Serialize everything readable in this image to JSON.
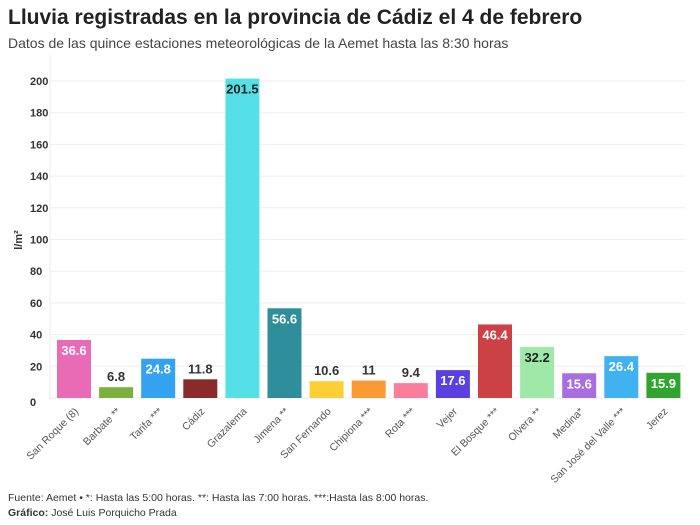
{
  "chart_data": {
    "type": "bar",
    "title": "Lluvia registradas en la provincia de Cádiz el 4 de febrero",
    "subtitle": "Datos de las quince estaciones meteorológicas de la Aemet hasta las 8:30 horas",
    "ylabel": "l/m²",
    "xlabel": "",
    "ylim": [
      0,
      200
    ],
    "yticks": [
      0,
      20,
      40,
      60,
      80,
      100,
      120,
      140,
      160,
      180,
      200
    ],
    "grid": true,
    "categories": [
      "San Roque (8)",
      "Barbate **",
      "Tarifa ***",
      "Cádiz",
      "Grazalema",
      "Jimena **",
      "San Fernando",
      "Chipiona ***",
      "Rota ***",
      "Vejer",
      "El Bosque ***",
      "Olvera **",
      "Medina*",
      "San José del Valle ***",
      "Jerez"
    ],
    "values": [
      36.6,
      6.8,
      24.8,
      11.8,
      201.5,
      56.6,
      10.6,
      11,
      9.4,
      17.6,
      46.4,
      32.2,
      15.6,
      26.4,
      15.9
    ],
    "labels": [
      "36.6",
      "6.8",
      "24.8",
      "11.8",
      "201.5",
      "56.6",
      "10.6",
      "11",
      "9.4",
      "17.6",
      "46.4",
      "32.2",
      "15.6",
      "26.4",
      "15.9"
    ],
    "colors": [
      "#ea6bb5",
      "#7bb03c",
      "#33a3f0",
      "#8b2a2a",
      "#55e0e8",
      "#2e8e99",
      "#fdcf36",
      "#fb9a33",
      "#fb7d9c",
      "#5b3fe0",
      "#cc4146",
      "#9ee8a8",
      "#a86ddf",
      "#41b2f0",
      "#2fa52f"
    ],
    "label_colors": [
      "#fff",
      "#333",
      "#fff",
      "#333",
      "#222",
      "#fff",
      "#333",
      "#333",
      "#333",
      "#fff",
      "#fff",
      "#222",
      "#fff",
      "#fff",
      "#fff"
    ]
  },
  "footer": {
    "source": "Fuente: Aemet • *: Hasta las 5:00 horas. **: Hasta las 7:00 horas. ***:Hasta las 8:00 horas.",
    "credit_label": "Gráfico:",
    "credit": "José Luis Porquicho Prada"
  }
}
